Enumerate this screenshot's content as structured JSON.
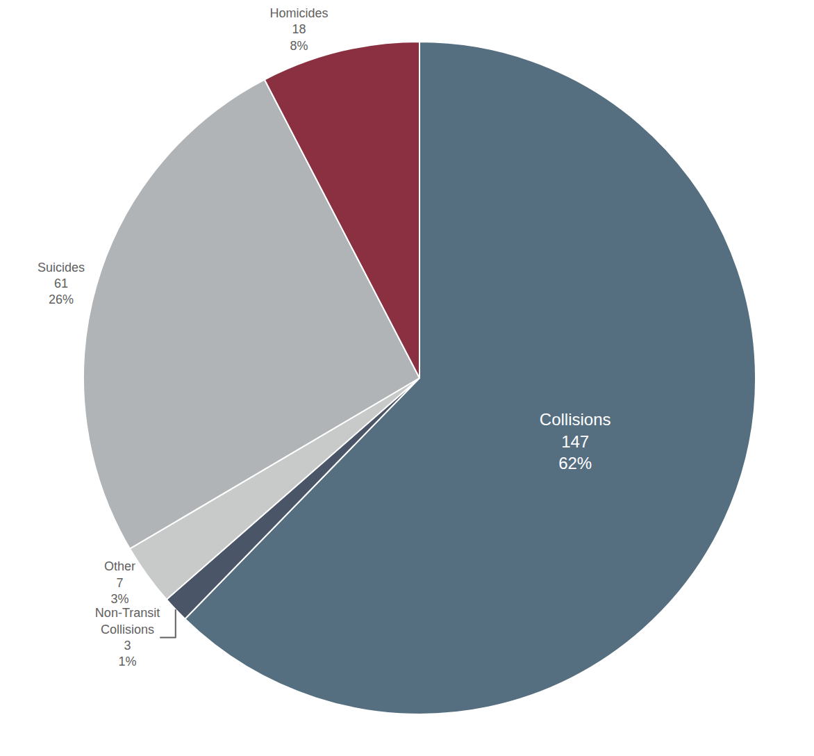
{
  "chart_data": {
    "type": "pie",
    "categories": [
      "Collisions",
      "Non-Transit\nCollisions",
      "Other",
      "Suicides",
      "Homicides"
    ],
    "values": [
      147,
      3,
      7,
      61,
      18
    ],
    "percentages": [
      62,
      1,
      3,
      26,
      8
    ],
    "percentage_labels": [
      "62%",
      "1%",
      "3%",
      "26%",
      "8%"
    ],
    "colors": [
      "#566f80",
      "#4a5568",
      "#c8caca",
      "#b0b4b6",
      "#8b3040"
    ],
    "data_labels": true
  }
}
